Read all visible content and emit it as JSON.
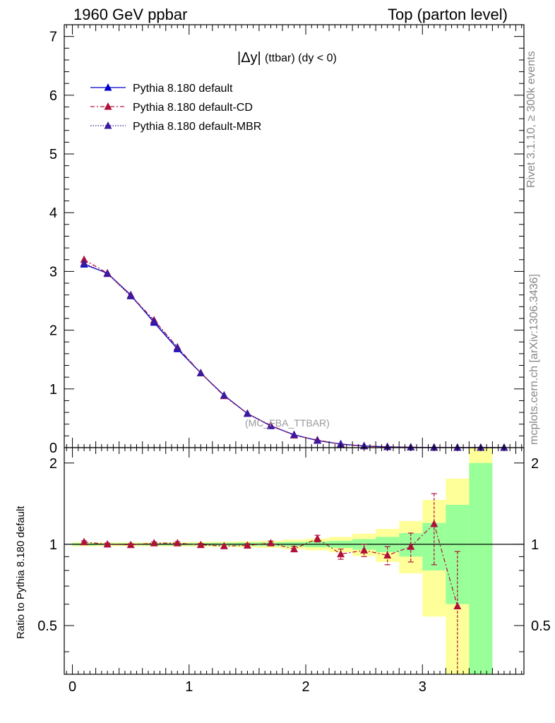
{
  "header": {
    "left": "1960 GeV ppbar",
    "right": "Top (parton level)"
  },
  "side": {
    "rivet": "Rivet 3.1.10, ≥ 300k events",
    "mcplots": "mcplots.cern.ch [arXiv:1306.3436]"
  },
  "chart_data": [
    {
      "type": "line",
      "title_main": "|Δy|",
      "title_sub": "(ttbar) (dy < 0)",
      "watermark": "(MC_FBA_TTBAR)",
      "xlim": [
        -0.07,
        3.87
      ],
      "ylim": [
        0,
        7.2
      ],
      "yticks": [
        0,
        1,
        2,
        3,
        4,
        5,
        6,
        7
      ],
      "x": [
        0.1,
        0.3,
        0.5,
        0.7,
        0.9,
        1.1,
        1.3,
        1.5,
        1.7,
        1.9,
        2.1,
        2.3,
        2.5,
        2.7,
        2.9,
        3.1,
        3.3,
        3.5,
        3.7
      ],
      "legend_position": "top-left",
      "series": [
        {
          "name": "Pythia 8.180 default",
          "color": "#0000cc",
          "style": "solid",
          "values": [
            3.12,
            2.97,
            2.6,
            2.13,
            1.68,
            1.27,
            0.89,
            0.58,
            0.37,
            0.22,
            0.12,
            0.062,
            0.028,
            0.013,
            0.006,
            0.0025,
            0.0012,
            0.0005,
            0.0002
          ]
        },
        {
          "name": "Pythia 8.180 default-CD",
          "color": "#b0103a",
          "style": "dashdot",
          "values": [
            3.2,
            2.97,
            2.59,
            2.17,
            1.71,
            1.27,
            0.88,
            0.58,
            0.38,
            0.21,
            0.13,
            0.057,
            0.027,
            0.012,
            0.006,
            0.003,
            0.0007,
            0.0003,
            0.0001
          ]
        },
        {
          "name": "Pythia 8.180 default-MBR",
          "color": "#3a1aa0",
          "style": "dotted",
          "values": [
            3.14,
            2.96,
            2.58,
            2.15,
            1.7,
            1.27,
            0.89,
            0.58,
            0.37,
            0.22,
            0.12,
            0.061,
            0.028,
            0.013,
            0.006,
            0.0025,
            0.0011,
            0.0005,
            0.0002
          ]
        }
      ]
    },
    {
      "type": "line",
      "ylabel": "Ratio to Pythia 8.180 default",
      "xlim": [
        -0.07,
        3.87
      ],
      "ylim": [
        0.33,
        2.28
      ],
      "xticks": [
        0,
        1,
        2,
        3
      ],
      "yticks": [
        0.5,
        1,
        2
      ],
      "x": [
        0.1,
        0.3,
        0.5,
        0.7,
        0.9,
        1.1,
        1.3,
        1.5,
        1.7,
        1.9,
        2.1,
        2.3,
        2.5,
        2.7,
        2.9,
        3.1,
        3.3
      ],
      "ratio_cd": [
        1.02,
        1.0,
        0.995,
        1.01,
        1.01,
        0.995,
        0.985,
        0.99,
        1.01,
        0.96,
        1.05,
        0.92,
        0.95,
        0.91,
        0.98,
        1.19,
        0.59
      ],
      "ratio_cd_err": [
        0.01,
        0.01,
        0.01,
        0.01,
        0.012,
        0.012,
        0.013,
        0.015,
        0.018,
        0.022,
        0.03,
        0.04,
        0.05,
        0.07,
        0.12,
        0.35,
        0.35
      ],
      "band_edges": [
        0.0,
        0.2,
        0.4,
        0.6,
        0.8,
        1.0,
        1.2,
        1.4,
        1.6,
        1.8,
        2.0,
        2.2,
        2.4,
        2.6,
        2.8,
        3.0,
        3.2,
        3.4,
        3.6
      ],
      "band_green": [
        0.01,
        0.008,
        0.008,
        0.009,
        0.01,
        0.011,
        0.012,
        0.014,
        0.016,
        0.02,
        0.025,
        0.03,
        0.045,
        0.065,
        0.1,
        0.2,
        0.4,
        1.0
      ],
      "band_yellow": [
        0.018,
        0.016,
        0.016,
        0.017,
        0.018,
        0.02,
        0.022,
        0.026,
        0.03,
        0.04,
        0.05,
        0.065,
        0.095,
        0.14,
        0.22,
        0.46,
        0.75,
        1.6
      ]
    }
  ]
}
